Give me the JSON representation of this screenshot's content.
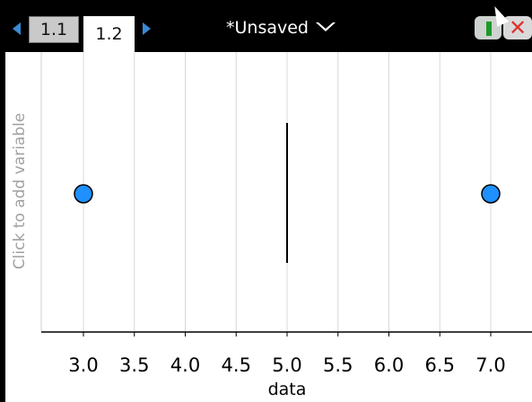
{
  "tabs": [
    {
      "label": "1.1",
      "active": false
    },
    {
      "label": "1.2",
      "active": true
    }
  ],
  "document": {
    "title": "*Unsaved"
  },
  "icons": {
    "prev": "left-arrow-icon",
    "next": "right-arrow-icon",
    "menu": "dropdown-caret-icon",
    "battery": "battery-icon",
    "close": "close-icon"
  },
  "y_axis_prompt": "Click to add variable",
  "chart_data": {
    "type": "scatter",
    "xlabel": "data",
    "xlim": [
      2.6,
      7.3
    ],
    "x_ticks": [
      "3.0",
      "3.5",
      "4.0",
      "4.5",
      "5.0",
      "5.5",
      "6.0",
      "6.5",
      "7.0"
    ],
    "grid": true,
    "points": [
      3.0,
      7.0
    ],
    "median_line": 5.0,
    "point_color": "#1e90ff"
  }
}
